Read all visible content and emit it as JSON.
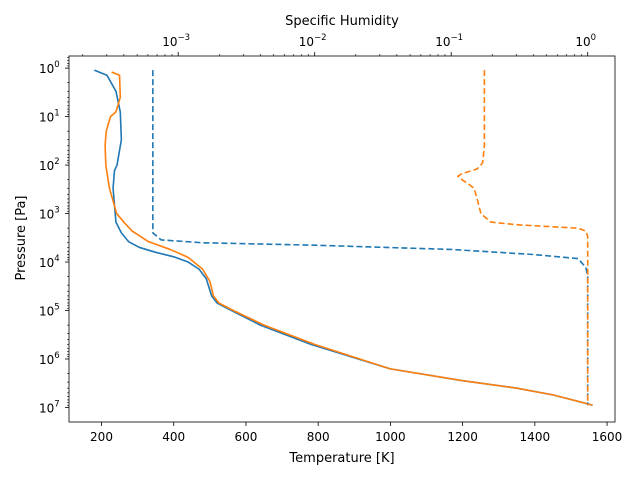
{
  "chart_data": {
    "type": "line",
    "title": "",
    "xlabel": "Temperature [K]",
    "ylabel": "Pressure [Pa]",
    "top_xlabel": "Specific Humidity",
    "xlim": [
      110,
      1622
    ],
    "ylim_log10": [
      7.3,
      -0.25
    ],
    "top_xlim_log10": [
      -3.8,
      0.2
    ],
    "y_scale": "log",
    "y_inverted": true,
    "top_x_scale": "log",
    "grid": false,
    "legend": "none",
    "x_ticks": [
      {
        "value": 200,
        "label": "200"
      },
      {
        "value": 400,
        "label": "400"
      },
      {
        "value": 600,
        "label": "600"
      },
      {
        "value": 800,
        "label": "800"
      },
      {
        "value": 1000,
        "label": "1000"
      },
      {
        "value": 1200,
        "label": "1200"
      },
      {
        "value": 1400,
        "label": "1400"
      },
      {
        "value": 1600,
        "label": "1600"
      }
    ],
    "y_ticks": [
      {
        "exp": 0,
        "base": "10",
        "power": "0"
      },
      {
        "exp": 1,
        "base": "10",
        "power": "1"
      },
      {
        "exp": 2,
        "base": "10",
        "power": "2"
      },
      {
        "exp": 3,
        "base": "10",
        "power": "3"
      },
      {
        "exp": 4,
        "base": "10",
        "power": "4"
      },
      {
        "exp": 5,
        "base": "10",
        "power": "5"
      },
      {
        "exp": 6,
        "base": "10",
        "power": "6"
      },
      {
        "exp": 7,
        "base": "10",
        "power": "7"
      }
    ],
    "top_ticks": [
      {
        "exp": -3,
        "base": "10",
        "power": "−3"
      },
      {
        "exp": -2,
        "base": "10",
        "power": "−2"
      },
      {
        "exp": -1,
        "base": "10",
        "power": "−1"
      },
      {
        "exp": 0,
        "base": "10",
        "power": "0"
      }
    ],
    "series": [
      {
        "color": "#1f77b4",
        "dash": "solid",
        "axis": "temperature",
        "points": [
          [
            180,
            1.1
          ],
          [
            215,
            1.4
          ],
          [
            240,
            3
          ],
          [
            252,
            8
          ],
          [
            255,
            30
          ],
          [
            243,
            100
          ],
          [
            236,
            130
          ],
          [
            232,
            300
          ],
          [
            240,
            1500
          ],
          [
            255,
            2500
          ],
          [
            275,
            3800
          ],
          [
            305,
            5000
          ],
          [
            350,
            6300
          ],
          [
            400,
            7800
          ],
          [
            440,
            10000
          ],
          [
            470,
            14000
          ],
          [
            490,
            22000
          ],
          [
            505,
            50000
          ],
          [
            520,
            70000
          ],
          [
            560,
            100000
          ],
          [
            640,
            200000
          ],
          [
            780,
            500000
          ],
          [
            1000,
            1600000
          ],
          [
            1200,
            2800000
          ],
          [
            1350,
            4000000
          ],
          [
            1450,
            5500000
          ],
          [
            1520,
            7500000
          ],
          [
            1560,
            9000000
          ]
        ]
      },
      {
        "color": "#ff7f0e",
        "dash": "solid",
        "axis": "temperature",
        "points": [
          [
            228,
            1.2
          ],
          [
            250,
            1.4
          ],
          [
            252,
            4
          ],
          [
            240,
            8
          ],
          [
            225,
            10
          ],
          [
            213,
            20
          ],
          [
            210,
            40
          ],
          [
            212,
            100
          ],
          [
            222,
            300
          ],
          [
            242,
            1000
          ],
          [
            265,
            1600
          ],
          [
            285,
            2300
          ],
          [
            330,
            3800
          ],
          [
            390,
            5500
          ],
          [
            440,
            8000
          ],
          [
            480,
            14000
          ],
          [
            500,
            25000
          ],
          [
            510,
            50000
          ],
          [
            525,
            70000
          ],
          [
            565,
            100000
          ],
          [
            650,
            200000
          ],
          [
            790,
            500000
          ],
          [
            1000,
            1600000
          ],
          [
            1200,
            2800000
          ],
          [
            1350,
            4000000
          ],
          [
            1450,
            5500000
          ],
          [
            1520,
            7500000
          ],
          [
            1560,
            9000000
          ]
        ]
      },
      {
        "color": "#1f77b4",
        "dash": "dashed",
        "axis": "humidity",
        "points": [
          [
            0.000652,
            1.1
          ],
          [
            0.000652,
            300
          ],
          [
            0.000652,
            2500
          ],
          [
            0.00075,
            3500
          ],
          [
            0.0015,
            4000
          ],
          [
            0.01,
            4500
          ],
          [
            0.1,
            5500
          ],
          [
            0.4,
            7000
          ],
          [
            0.85,
            8500
          ],
          [
            0.97,
            13000
          ],
          [
            1.0,
            20000
          ],
          [
            1.0,
            100000
          ],
          [
            1.0,
            1000000
          ],
          [
            1.0,
            9000000
          ]
        ]
      },
      {
        "color": "#ff7f0e",
        "dash": "dashed",
        "axis": "humidity",
        "points": [
          [
            0.175,
            1.1
          ],
          [
            0.175,
            10
          ],
          [
            0.175,
            40
          ],
          [
            0.17,
            90
          ],
          [
            0.155,
            120
          ],
          [
            0.12,
            150
          ],
          [
            0.112,
            170
          ],
          [
            0.12,
            200
          ],
          [
            0.135,
            250
          ],
          [
            0.147,
            300
          ],
          [
            0.155,
            500
          ],
          [
            0.165,
            1000
          ],
          [
            0.195,
            1500
          ],
          [
            0.3,
            1700
          ],
          [
            0.6,
            1900
          ],
          [
            0.85,
            2000
          ],
          [
            0.97,
            2300
          ],
          [
            1.0,
            3000
          ],
          [
            1.0,
            100000
          ],
          [
            1.0,
            1000000
          ],
          [
            1.0,
            9000000
          ]
        ]
      }
    ]
  }
}
